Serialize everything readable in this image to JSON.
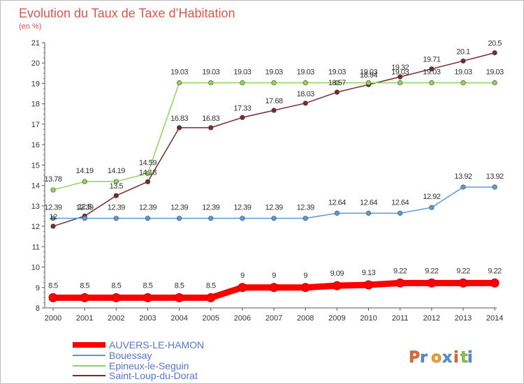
{
  "chart_data": {
    "type": "line",
    "title": "Evolution du Taux de Taxe d’Habitation",
    "subtitle": "(en %)",
    "x": [
      "2000",
      "2001",
      "2002",
      "2003",
      "2004",
      "2005",
      "2006",
      "2007",
      "2008",
      "2009",
      "2010",
      "2011",
      "2012",
      "2013",
      "2014"
    ],
    "ylim": [
      8,
      21
    ],
    "yticks": [
      8,
      9,
      10,
      11,
      12,
      13,
      14,
      15,
      16,
      17,
      18,
      19,
      20,
      21
    ],
    "grid": false,
    "legend_position": "bottom-left",
    "series": [
      {
        "name": "AUVERS-LE-HAMON",
        "color": "#ff0000",
        "values": [
          8.5,
          8.5,
          8.5,
          8.5,
          8.5,
          8.5,
          9,
          9,
          9,
          9.09,
          9.13,
          9.22,
          9.22,
          9.22,
          9.22
        ],
        "labels": [
          "8.5",
          "8.5",
          "8.5",
          "8.5",
          "8.5",
          "8.5",
          "9",
          "9",
          "9",
          "9.09",
          "9.13",
          "9.22",
          "9.22",
          "9.22",
          "9.22"
        ]
      },
      {
        "name": "Bouessay",
        "color": "#5b9bd5",
        "values": [
          12.39,
          12.39,
          12.39,
          12.39,
          12.39,
          12.39,
          12.39,
          12.39,
          12.39,
          12.64,
          12.64,
          12.64,
          12.92,
          13.92,
          13.92
        ],
        "labels": [
          "12.39",
          "12.39",
          "12.39",
          "12.39",
          "12.39",
          "12.39",
          "12.39",
          "12.39",
          "12.39",
          "12.64",
          "12.64",
          "12.64",
          "12.92",
          "13.92",
          "13.92"
        ]
      },
      {
        "name": "Epineux-le-Seguin",
        "color": "#8fd45a",
        "values": [
          13.78,
          14.19,
          14.19,
          14.59,
          19.03,
          19.03,
          19.03,
          19.03,
          19.03,
          19.03,
          19.03,
          19.03,
          19.03,
          19.03,
          19.03
        ],
        "labels": [
          "13.78",
          "14.19",
          "14.19",
          "14.59",
          "19.03",
          "19.03",
          "19.03",
          "19.03",
          "19.03",
          "19.03",
          "19.03",
          "19.03",
          "19.03",
          "19.03",
          "19.03"
        ]
      },
      {
        "name": "Saint-Loup-du-Dorat",
        "color": "#7a2a2a",
        "values": [
          12,
          12.5,
          13.5,
          14.18,
          16.83,
          16.83,
          17.33,
          17.68,
          18.03,
          18.57,
          18.94,
          19.32,
          19.71,
          20.1,
          20.5
        ],
        "labels": [
          "12",
          "12.5",
          "13.5",
          "14.18",
          "16.83",
          "16.83",
          "17.33",
          "17.68",
          "18.03",
          "18.57",
          "18.94",
          "19.32",
          "19.71",
          "20.1",
          "20.5"
        ]
      }
    ]
  },
  "logo_text": "Proxiti"
}
